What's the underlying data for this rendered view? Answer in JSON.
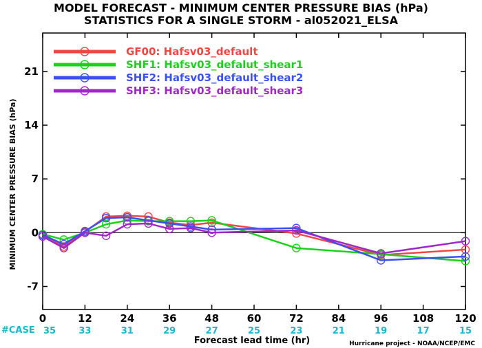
{
  "chart_data": {
    "type": "line",
    "title": "MODEL FORECAST - MINIMUM CENTER PRESSURE BIAS (hPa)",
    "subtitle": "STATISTICS FOR A SINGLE STORM - al052021_ELSA",
    "xlabel": "Forecast lead time (hr)",
    "ylabel": "MINIMUM CENTER PRESSURE BIAS (hPa)",
    "xlim": [
      0,
      120
    ],
    "ylim": [
      -10,
      26
    ],
    "x_ticks": [
      0,
      12,
      24,
      36,
      48,
      60,
      72,
      84,
      96,
      108,
      120
    ],
    "y_ticks": [
      -7,
      0,
      7,
      14,
      21
    ],
    "zero_line": true,
    "legend_position": "top-left",
    "case_label": "#CASE",
    "case_counts": [
      35,
      33,
      31,
      29,
      27,
      25,
      23,
      21,
      19,
      17,
      15
    ],
    "credit": "Hurricane project - NOAA/NCEP/EMC",
    "series": [
      {
        "name": "GF00: Hafsv03_default",
        "color": "#f04646",
        "x": [
          0,
          6,
          12,
          18,
          24,
          30,
          36,
          42,
          48,
          72,
          96,
          120
        ],
        "y": [
          -0.3,
          -1.8,
          0.1,
          2.1,
          2.2,
          2.1,
          1.3,
          1.0,
          1.3,
          -0.1,
          -2.9,
          -2.2
        ]
      },
      {
        "name": "SHF1: Hafsv03_defalut_shear1",
        "color": "#19d219",
        "x": [
          0,
          6,
          12,
          18,
          24,
          30,
          36,
          42,
          48,
          72,
          96,
          120
        ],
        "y": [
          -0.2,
          -0.9,
          0.0,
          1.1,
          1.6,
          1.5,
          1.5,
          1.5,
          1.6,
          -2.0,
          -2.8,
          -3.7
        ]
      },
      {
        "name": "SHF2: Hafsv03_default_shear2",
        "color": "#3c50f0",
        "x": [
          0,
          6,
          12,
          18,
          24,
          30,
          36,
          42,
          48,
          72,
          96,
          120
        ],
        "y": [
          -0.3,
          -1.5,
          0.2,
          1.9,
          2.0,
          1.6,
          1.2,
          0.8,
          0.4,
          0.6,
          -3.6,
          -3.1
        ]
      },
      {
        "name": "SHF3: Hafsv03_default_shear3",
        "color": "#a028c8",
        "x": [
          0,
          6,
          12,
          18,
          24,
          30,
          36,
          42,
          48,
          72,
          96,
          120
        ],
        "y": [
          -0.5,
          -2.0,
          0.0,
          -0.4,
          1.1,
          1.2,
          0.5,
          0.6,
          0.0,
          0.3,
          -2.7,
          -1.1
        ]
      }
    ]
  }
}
